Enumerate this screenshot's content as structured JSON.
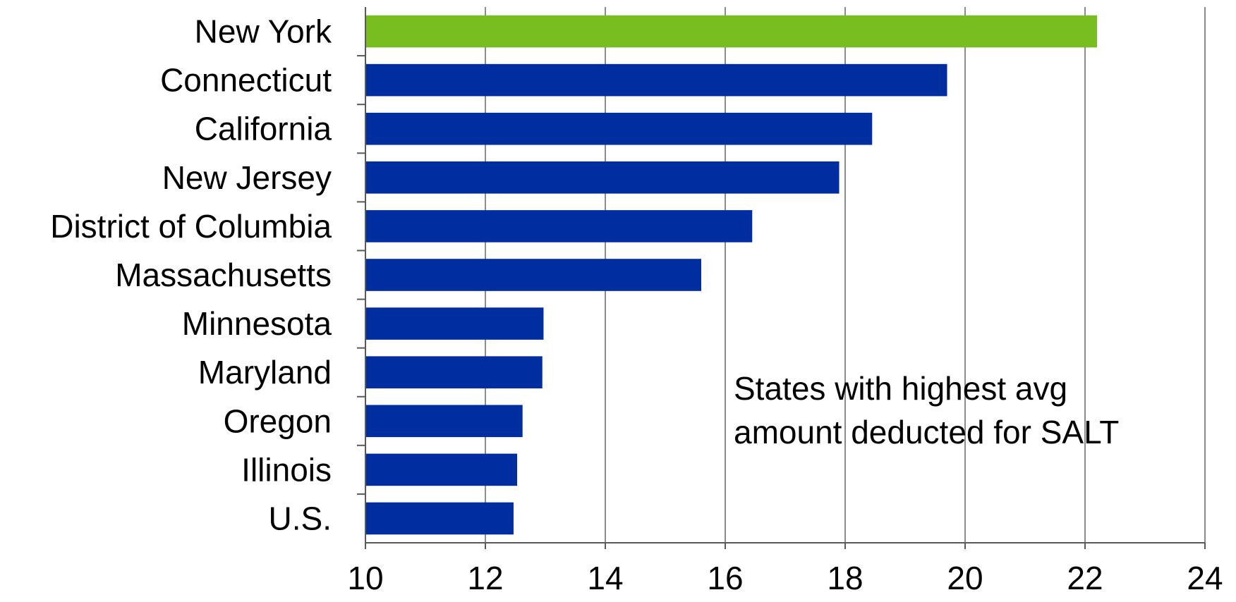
{
  "chart_data": {
    "type": "bar",
    "orientation": "horizontal",
    "categories": [
      "New York",
      "Connecticut",
      "California",
      "New Jersey",
      "District of Columbia",
      "Massachusetts",
      "Minnesota",
      "Maryland",
      "Oregon",
      "Illinois",
      "U.S."
    ],
    "values": [
      22.2,
      19.7,
      18.45,
      17.9,
      16.45,
      15.6,
      12.97,
      12.95,
      12.62,
      12.53,
      12.47
    ],
    "xlim": [
      10,
      24
    ],
    "xticks": [
      "10",
      "12",
      "14",
      "16",
      "18",
      "20",
      "22",
      "24"
    ],
    "grid": true,
    "annotation": [
      "States with highest avg",
      "amount deducted for SALT"
    ],
    "colors": {
      "highlight": "#78be20",
      "bar": "#002ea0",
      "grid": "#8c8c8c",
      "axis": "#595959"
    },
    "highlight_category": "New York"
  }
}
